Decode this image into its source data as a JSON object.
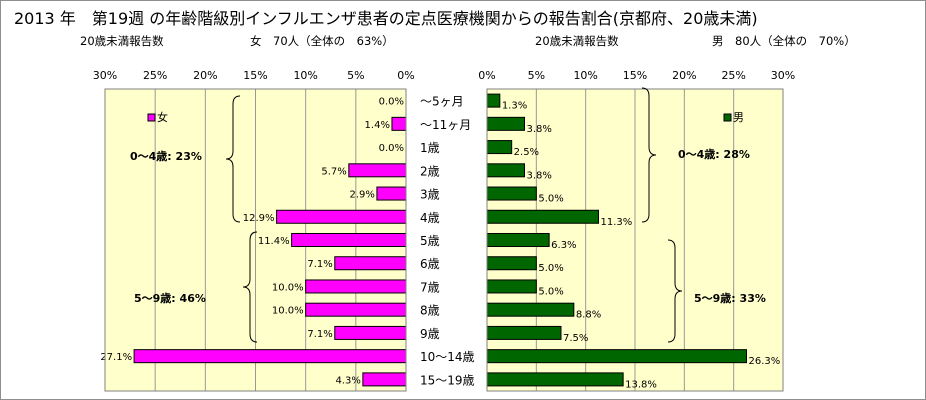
{
  "title": "2013 年　第19週 の年齢階級別インフルエンザ患者の定点医療機関からの報告割合(京都府、20歳未満)",
  "female_panel": {
    "header_left": "20歳未満報告数",
    "header_right": "女　70人（全体の　63%）",
    "legend": "女",
    "group1_label": "0～4歳: 23%",
    "group2_label": "5～9歳: 46%"
  },
  "male_panel": {
    "header_left": "20歳未満報告数",
    "header_right": "男　80人（全体の　70%）",
    "legend": "男",
    "group1_label": "0～4歳: 28%",
    "group2_label": "5～9歳: 33%"
  },
  "chart_data": [
    {
      "type": "bar",
      "orientation": "horizontal",
      "direction": "right-to-left",
      "name": "女",
      "categories": [
        "～5ヶ月",
        "～11ヶ月",
        "1歳",
        "2歳",
        "3歳",
        "4歳",
        "5歳",
        "6歳",
        "7歳",
        "8歳",
        "9歳",
        "10～14歳",
        "15～19歳"
      ],
      "values": [
        0.0,
        1.4,
        0.0,
        5.7,
        2.9,
        12.9,
        11.4,
        7.1,
        10.0,
        10.0,
        7.1,
        27.1,
        4.3
      ],
      "value_labels": [
        "0.0%",
        "1.4%",
        "0.0%",
        "5.7%",
        "2.9%",
        "12.9%",
        "11.4%",
        "7.1%",
        "10.0%",
        "10.0%",
        "7.1%",
        "27.1%",
        "4.3%"
      ],
      "xlim": [
        0,
        30
      ],
      "ticks": [
        "30%",
        "25%",
        "20%",
        "15%",
        "10%",
        "5%",
        "0%"
      ],
      "color": "#ff00ff",
      "plot_background": "#ffffcc",
      "grid": true,
      "legend_position": "top-left"
    },
    {
      "type": "bar",
      "orientation": "horizontal",
      "direction": "left-to-right",
      "name": "男",
      "categories": [
        "～5ヶ月",
        "～11ヶ月",
        "1歳",
        "2歳",
        "3歳",
        "4歳",
        "5歳",
        "6歳",
        "7歳",
        "8歳",
        "9歳",
        "10～14歳",
        "15～19歳"
      ],
      "values": [
        1.3,
        3.8,
        2.5,
        3.8,
        5.0,
        11.3,
        6.3,
        5.0,
        5.0,
        8.8,
        7.5,
        26.3,
        13.8
      ],
      "value_labels": [
        "1.3%",
        "3.8%",
        "2.5%",
        "3.8%",
        "5.0%",
        "11.3%",
        "6.3%",
        "5.0%",
        "5.0%",
        "8.8%",
        "7.5%",
        "26.3%",
        "13.8%"
      ],
      "xlim": [
        0,
        30
      ],
      "ticks": [
        "0%",
        "5%",
        "10%",
        "15%",
        "20%",
        "25%",
        "30%"
      ],
      "color": "#006600",
      "plot_background": "#ffffcc",
      "grid": true,
      "legend_position": "top-right"
    }
  ]
}
